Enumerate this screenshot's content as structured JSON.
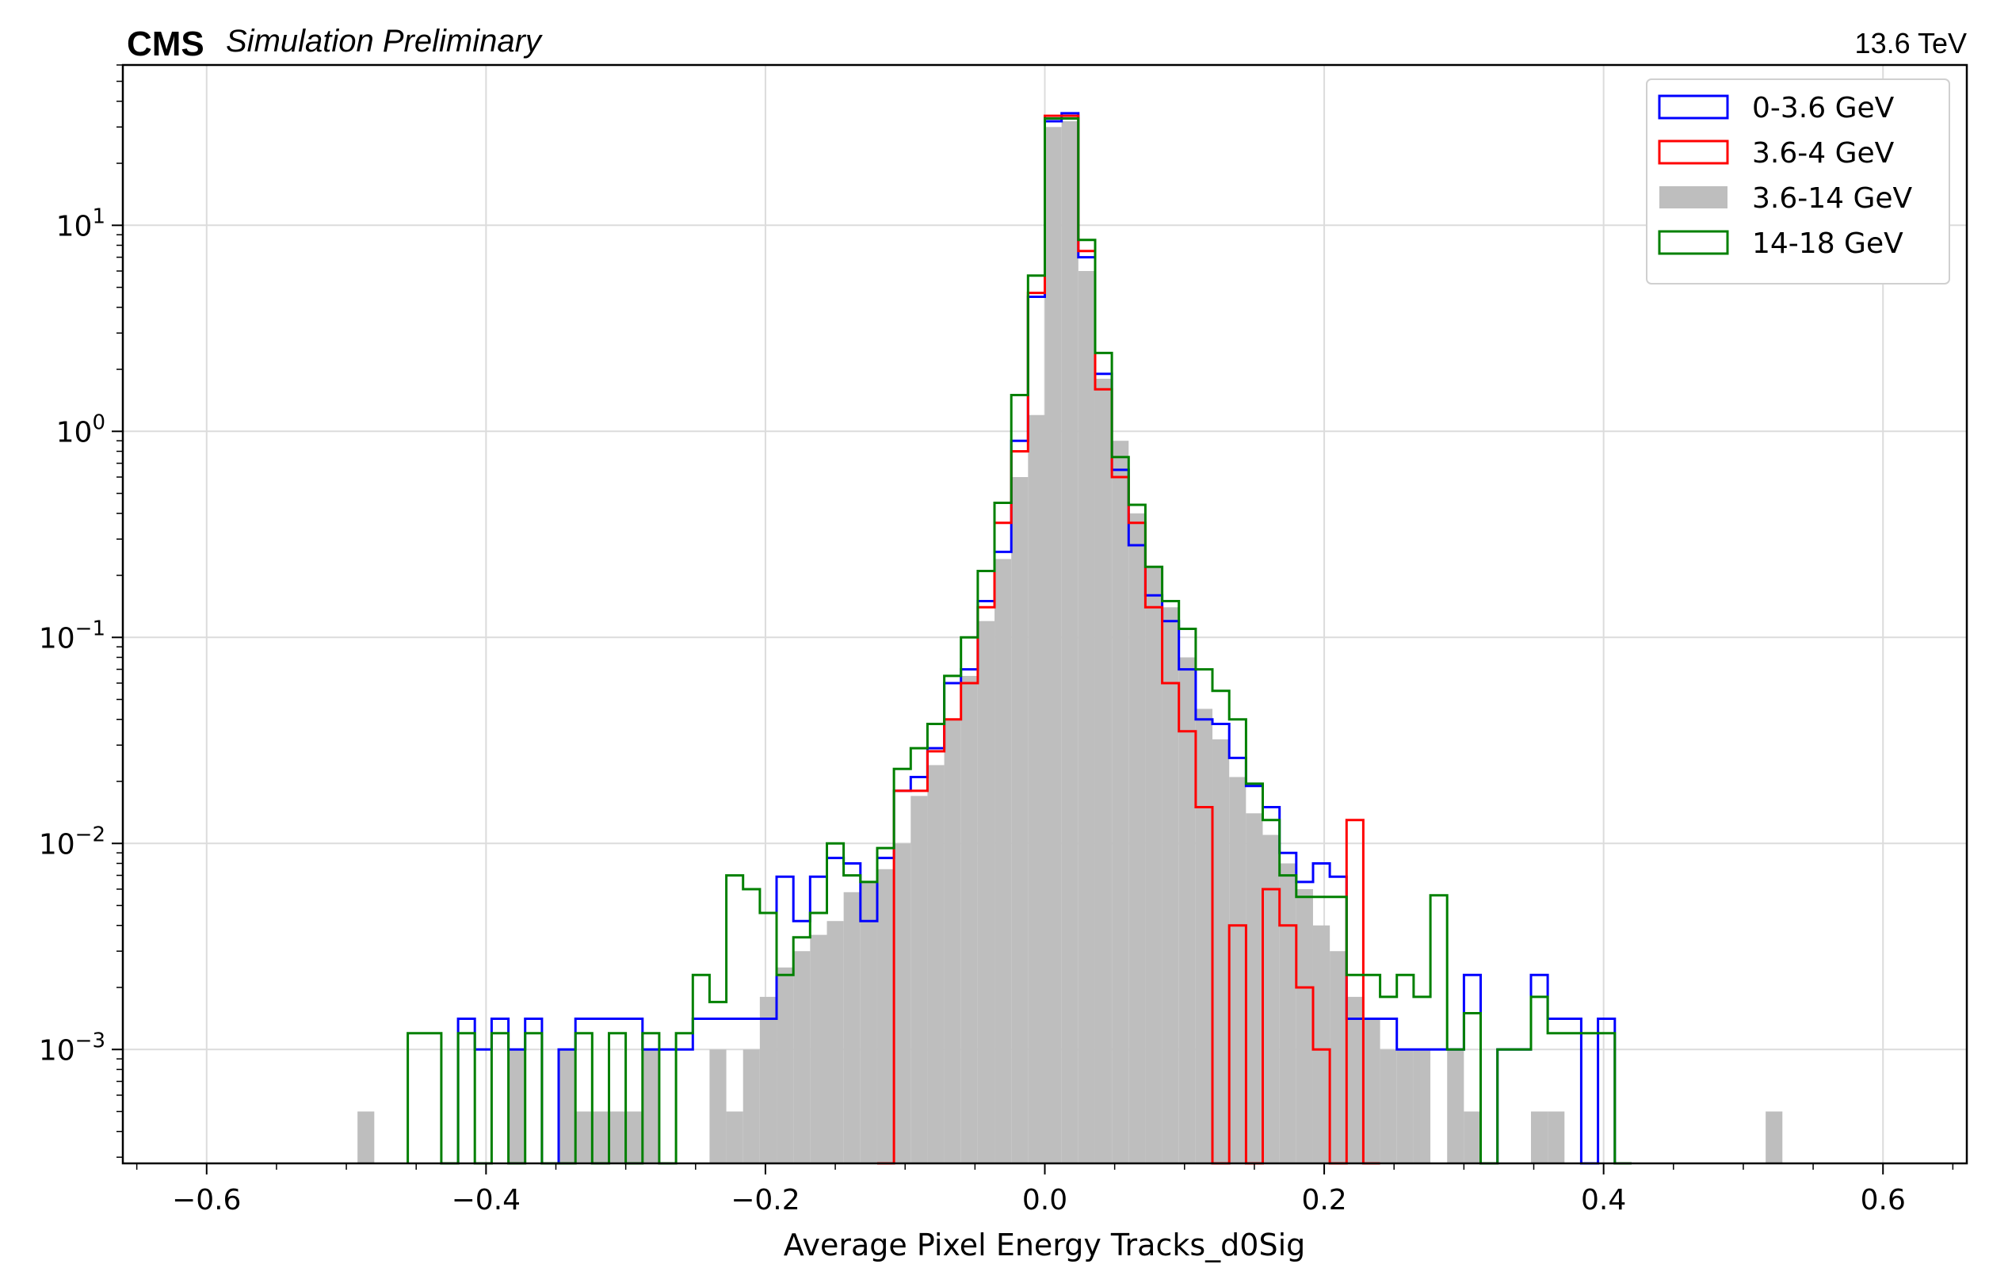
{
  "header": {
    "experiment": "CMS",
    "label": "Simulation Preliminary",
    "energy": "13.6 TeV"
  },
  "chart_data": {
    "type": "histogram",
    "xlabel": "Average Pixel Energy Tracks_d0Sig",
    "ylabel": "",
    "xlim": [
      -0.66,
      0.66
    ],
    "ylim": [
      0.00028,
      60
    ],
    "yscale": "log",
    "grid": true,
    "legend_position": "top-right",
    "bin_width": 0.012,
    "x_ticks": [
      -0.6,
      -0.4,
      -0.2,
      0.0,
      0.2,
      0.4,
      0.6
    ],
    "x_tick_labels": [
      "−0.6",
      "−0.4",
      "−0.2",
      "0.0",
      "0.2",
      "0.4",
      "0.6"
    ],
    "y_ticks": [
      {
        "value": 0.001,
        "base": "10",
        "exp": "−3"
      },
      {
        "value": 0.01,
        "base": "10",
        "exp": "−2"
      },
      {
        "value": 0.1,
        "base": "10",
        "exp": "−1"
      },
      {
        "value": 1,
        "base": "10",
        "exp": "0"
      },
      {
        "value": 10,
        "base": "10",
        "exp": "1"
      }
    ],
    "series": [
      {
        "name": "0-3.6 GeV",
        "style": "step",
        "color": "#0000ff",
        "points": [
          [
            -0.42,
            0.00141
          ],
          [
            -0.408,
            0.001
          ],
          [
            -0.396,
            0.00141
          ],
          [
            -0.384,
            0.001
          ],
          [
            -0.372,
            0.00141
          ],
          [
            -0.36,
            0.0002
          ],
          [
            -0.348,
            0.001
          ],
          [
            -0.336,
            0.00141
          ],
          [
            -0.324,
            0.00141
          ],
          [
            -0.312,
            0.00141
          ],
          [
            -0.3,
            0.00141
          ],
          [
            -0.288,
            0.001
          ],
          [
            -0.276,
            0.001
          ],
          [
            -0.264,
            0.001
          ],
          [
            -0.252,
            0.00141
          ],
          [
            -0.24,
            0.00141
          ],
          [
            -0.228,
            0.00141
          ],
          [
            -0.216,
            0.00141
          ],
          [
            -0.204,
            0.00141
          ],
          [
            -0.192,
            0.0069
          ],
          [
            -0.18,
            0.0042
          ],
          [
            -0.168,
            0.0069
          ],
          [
            -0.156,
            0.0085
          ],
          [
            -0.144,
            0.008
          ],
          [
            -0.132,
            0.0042
          ],
          [
            -0.12,
            0.0085
          ],
          [
            -0.108,
            0.018
          ],
          [
            -0.096,
            0.021
          ],
          [
            -0.084,
            0.029
          ],
          [
            -0.072,
            0.06
          ],
          [
            -0.06,
            0.07
          ],
          [
            -0.048,
            0.15
          ],
          [
            -0.036,
            0.26
          ],
          [
            -0.024,
            0.9
          ],
          [
            -0.012,
            4.5
          ],
          [
            0.0,
            32.0
          ],
          [
            0.012,
            35.0
          ],
          [
            0.024,
            7.0
          ],
          [
            0.036,
            1.9
          ],
          [
            0.048,
            0.65
          ],
          [
            0.06,
            0.28
          ],
          [
            0.072,
            0.16
          ],
          [
            0.084,
            0.12
          ],
          [
            0.096,
            0.07
          ],
          [
            0.108,
            0.04
          ],
          [
            0.12,
            0.038
          ],
          [
            0.132,
            0.026
          ],
          [
            0.144,
            0.019
          ],
          [
            0.156,
            0.015
          ],
          [
            0.168,
            0.009
          ],
          [
            0.18,
            0.0065
          ],
          [
            0.192,
            0.008
          ],
          [
            0.204,
            0.0069
          ],
          [
            0.216,
            0.00141
          ],
          [
            0.228,
            0.00141
          ],
          [
            0.24,
            0.00141
          ],
          [
            0.252,
            0.001
          ],
          [
            0.264,
            0.001
          ],
          [
            0.276,
            0.001
          ],
          [
            0.288,
            0.001
          ],
          [
            0.3,
            0.0023
          ],
          [
            0.312,
            0.0002
          ],
          [
            0.324,
            0.001
          ],
          [
            0.336,
            0.001
          ],
          [
            0.348,
            0.0023
          ],
          [
            0.36,
            0.00141
          ],
          [
            0.372,
            0.00141
          ],
          [
            0.384,
            0.0002
          ],
          [
            0.396,
            0.00141
          ],
          [
            0.408,
            0.0002
          ]
        ]
      },
      {
        "name": "3.6-4 GeV",
        "style": "step",
        "color": "#ff0000",
        "points": [
          [
            -0.12,
            0.0002
          ],
          [
            -0.108,
            0.018
          ],
          [
            -0.096,
            0.018
          ],
          [
            -0.084,
            0.028
          ],
          [
            -0.072,
            0.04
          ],
          [
            -0.06,
            0.06
          ],
          [
            -0.048,
            0.14
          ],
          [
            -0.036,
            0.36
          ],
          [
            -0.024,
            0.8
          ],
          [
            -0.012,
            4.7
          ],
          [
            0.0,
            34.0
          ],
          [
            0.012,
            34.0
          ],
          [
            0.024,
            7.5
          ],
          [
            0.036,
            1.6
          ],
          [
            0.048,
            0.6
          ],
          [
            0.06,
            0.36
          ],
          [
            0.072,
            0.14
          ],
          [
            0.084,
            0.06
          ],
          [
            0.096,
            0.035
          ],
          [
            0.108,
            0.015
          ],
          [
            0.12,
            0.0002
          ],
          [
            0.132,
            0.004
          ],
          [
            0.144,
            0.0002
          ],
          [
            0.156,
            0.006
          ],
          [
            0.168,
            0.004
          ],
          [
            0.18,
            0.002
          ],
          [
            0.192,
            0.001
          ],
          [
            0.204,
            0.0002
          ],
          [
            0.216,
            0.013
          ],
          [
            0.228,
            0.0002
          ]
        ]
      },
      {
        "name": "3.6-14 GeV",
        "style": "filled",
        "color": "#bebebe",
        "points": [
          [
            -0.492,
            0.0005
          ],
          [
            -0.48,
            0.0002
          ],
          [
            -0.456,
            0.0002
          ],
          [
            -0.444,
            0.0002
          ],
          [
            -0.432,
            0.0002
          ],
          [
            -0.42,
            0.0002
          ],
          [
            -0.408,
            0.0002
          ],
          [
            -0.396,
            0.0002
          ],
          [
            -0.384,
            0.001
          ],
          [
            -0.372,
            0.0002
          ],
          [
            -0.36,
            0.0002
          ],
          [
            -0.348,
            0.001
          ],
          [
            -0.336,
            0.0005
          ],
          [
            -0.324,
            0.0005
          ],
          [
            -0.312,
            0.0005
          ],
          [
            -0.3,
            0.0005
          ],
          [
            -0.288,
            0.001
          ],
          [
            -0.276,
            0.0002
          ],
          [
            -0.264,
            0.0002
          ],
          [
            -0.252,
            0.0002
          ],
          [
            -0.24,
            0.001
          ],
          [
            -0.228,
            0.0005
          ],
          [
            -0.216,
            0.001
          ],
          [
            -0.204,
            0.0018
          ],
          [
            -0.192,
            0.0025
          ],
          [
            -0.18,
            0.003
          ],
          [
            -0.168,
            0.0036
          ],
          [
            -0.156,
            0.0042
          ],
          [
            -0.144,
            0.0058
          ],
          [
            -0.132,
            0.0065
          ],
          [
            -0.12,
            0.0075
          ],
          [
            -0.108,
            0.01
          ],
          [
            -0.096,
            0.017
          ],
          [
            -0.084,
            0.024
          ],
          [
            -0.072,
            0.04
          ],
          [
            -0.06,
            0.065
          ],
          [
            -0.048,
            0.12
          ],
          [
            -0.036,
            0.24
          ],
          [
            -0.024,
            0.6
          ],
          [
            -0.012,
            1.2
          ],
          [
            0.0,
            30.0
          ],
          [
            0.012,
            32.0
          ],
          [
            0.024,
            6.0
          ],
          [
            0.036,
            1.8
          ],
          [
            0.048,
            0.9
          ],
          [
            0.06,
            0.4
          ],
          [
            0.072,
            0.22
          ],
          [
            0.084,
            0.14
          ],
          [
            0.096,
            0.08
          ],
          [
            0.108,
            0.045
          ],
          [
            0.12,
            0.032
          ],
          [
            0.132,
            0.021
          ],
          [
            0.144,
            0.014
          ],
          [
            0.156,
            0.011
          ],
          [
            0.168,
            0.008
          ],
          [
            0.18,
            0.006
          ],
          [
            0.192,
            0.004
          ],
          [
            0.204,
            0.003
          ],
          [
            0.216,
            0.0018
          ],
          [
            0.228,
            0.0014
          ],
          [
            0.24,
            0.001
          ],
          [
            0.252,
            0.001
          ],
          [
            0.264,
            0.001
          ],
          [
            0.276,
            0.0002
          ],
          [
            0.288,
            0.001
          ],
          [
            0.3,
            0.0005
          ],
          [
            0.312,
            0.0002
          ],
          [
            0.324,
            0.0002
          ],
          [
            0.336,
            0.0002
          ],
          [
            0.348,
            0.0005
          ],
          [
            0.36,
            0.0005
          ],
          [
            0.372,
            0.0002
          ],
          [
            0.384,
            0.0002
          ],
          [
            0.396,
            0.0002
          ],
          [
            0.408,
            0.0002
          ],
          [
            0.42,
            0.0002
          ],
          [
            0.432,
            0.0002
          ],
          [
            0.444,
            0.0002
          ],
          [
            0.456,
            0.0002
          ],
          [
            0.468,
            0.0002
          ],
          [
            0.48,
            0.0002
          ],
          [
            0.492,
            0.0002
          ],
          [
            0.504,
            0.0002
          ],
          [
            0.516,
            0.0005
          ],
          [
            0.528,
            0.0002
          ]
        ]
      },
      {
        "name": "14-18 GeV",
        "style": "step",
        "color": "#008000",
        "points": [
          [
            -0.456,
            0.0012
          ],
          [
            -0.444,
            0.0012
          ],
          [
            -0.432,
            0.0002
          ],
          [
            -0.42,
            0.0012
          ],
          [
            -0.408,
            0.0002
          ],
          [
            -0.396,
            0.0012
          ],
          [
            -0.384,
            0.0002
          ],
          [
            -0.372,
            0.0012
          ],
          [
            -0.36,
            0.0002
          ],
          [
            -0.348,
            0.0002
          ],
          [
            -0.336,
            0.0012
          ],
          [
            -0.324,
            0.0002
          ],
          [
            -0.312,
            0.0012
          ],
          [
            -0.3,
            0.0002
          ],
          [
            -0.288,
            0.0012
          ],
          [
            -0.276,
            0.0002
          ],
          [
            -0.264,
            0.0012
          ],
          [
            -0.252,
            0.0023
          ],
          [
            -0.24,
            0.0017
          ],
          [
            -0.228,
            0.007
          ],
          [
            -0.216,
            0.006
          ],
          [
            -0.204,
            0.0046
          ],
          [
            -0.192,
            0.0023
          ],
          [
            -0.18,
            0.0035
          ],
          [
            -0.168,
            0.0046
          ],
          [
            -0.156,
            0.01
          ],
          [
            -0.144,
            0.007
          ],
          [
            -0.132,
            0.0065
          ],
          [
            -0.12,
            0.0095
          ],
          [
            -0.108,
            0.023
          ],
          [
            -0.096,
            0.029
          ],
          [
            -0.084,
            0.038
          ],
          [
            -0.072,
            0.065
          ],
          [
            -0.06,
            0.1
          ],
          [
            -0.048,
            0.21
          ],
          [
            -0.036,
            0.45
          ],
          [
            -0.024,
            1.5
          ],
          [
            -0.012,
            5.7
          ],
          [
            0.0,
            33.0
          ],
          [
            0.012,
            33.0
          ],
          [
            0.024,
            8.5
          ],
          [
            0.036,
            2.4
          ],
          [
            0.048,
            0.75
          ],
          [
            0.06,
            0.44
          ],
          [
            0.072,
            0.22
          ],
          [
            0.084,
            0.15
          ],
          [
            0.096,
            0.11
          ],
          [
            0.108,
            0.07
          ],
          [
            0.12,
            0.055
          ],
          [
            0.132,
            0.04
          ],
          [
            0.144,
            0.0195
          ],
          [
            0.156,
            0.013
          ],
          [
            0.168,
            0.007
          ],
          [
            0.18,
            0.0055
          ],
          [
            0.192,
            0.0055
          ],
          [
            0.204,
            0.0055
          ],
          [
            0.216,
            0.0023
          ],
          [
            0.228,
            0.0023
          ],
          [
            0.24,
            0.0018
          ],
          [
            0.252,
            0.0023
          ],
          [
            0.264,
            0.0018
          ],
          [
            0.276,
            0.0056
          ],
          [
            0.288,
            0.001
          ],
          [
            0.3,
            0.0015
          ],
          [
            0.312,
            0.0002
          ],
          [
            0.324,
            0.001
          ],
          [
            0.336,
            0.001
          ],
          [
            0.348,
            0.0018
          ],
          [
            0.36,
            0.0012
          ],
          [
            0.372,
            0.0012
          ],
          [
            0.384,
            0.0012
          ],
          [
            0.396,
            0.0012
          ],
          [
            0.408,
            0.0002
          ]
        ]
      }
    ]
  }
}
